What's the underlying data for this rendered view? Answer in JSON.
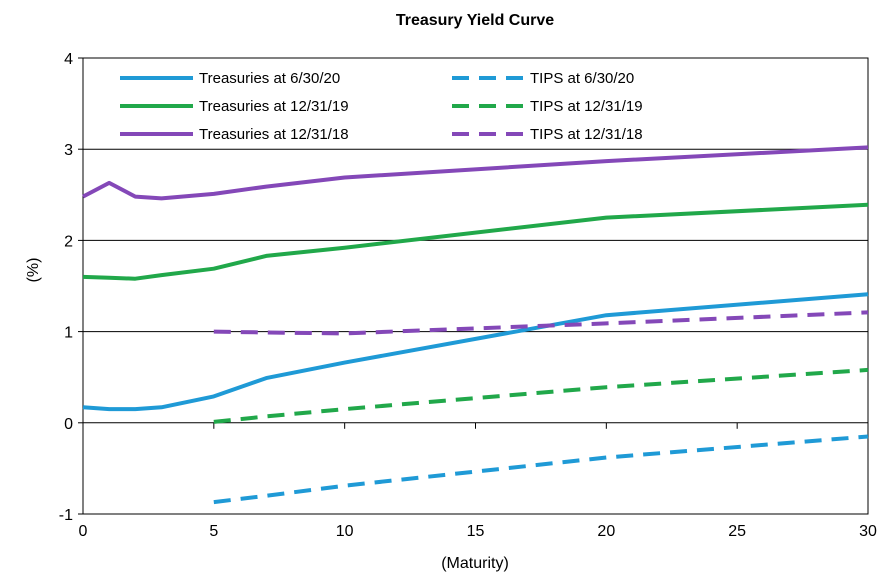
{
  "chart_data": {
    "type": "line",
    "title": "Treasury Yield Curve",
    "xlabel": "(Maturity)",
    "ylabel": "(%)",
    "xlim": [
      0,
      30
    ],
    "ylim": [
      -1,
      4
    ],
    "x_ticks": [
      "0",
      "5",
      "10",
      "15",
      "20",
      "25",
      "30"
    ],
    "y_ticks": [
      "-1",
      "0",
      "1",
      "2",
      "3",
      "4"
    ],
    "grid": "horizontal",
    "legend_position": "top-left inside",
    "series": [
      {
        "name": "Treasuries at 6/30/20",
        "color": "#1f9ad6",
        "dash": "solid",
        "points": [
          [
            0,
            0.17
          ],
          [
            1,
            0.15
          ],
          [
            2,
            0.15
          ],
          [
            3,
            0.17
          ],
          [
            5,
            0.29
          ],
          [
            7,
            0.49
          ],
          [
            10,
            0.66
          ],
          [
            20,
            1.18
          ],
          [
            30,
            1.41
          ]
        ]
      },
      {
        "name": "Treasuries at 12/31/19",
        "color": "#21a84a",
        "dash": "solid",
        "points": [
          [
            0,
            1.6
          ],
          [
            1,
            1.59
          ],
          [
            2,
            1.58
          ],
          [
            3,
            1.62
          ],
          [
            5,
            1.69
          ],
          [
            7,
            1.83
          ],
          [
            10,
            1.92
          ],
          [
            20,
            2.25
          ],
          [
            30,
            2.39
          ]
        ]
      },
      {
        "name": "Treasuries at 12/31/18",
        "color": "#8448b8",
        "dash": "solid",
        "points": [
          [
            0,
            2.48
          ],
          [
            1,
            2.63
          ],
          [
            2,
            2.48
          ],
          [
            3,
            2.46
          ],
          [
            5,
            2.51
          ],
          [
            7,
            2.59
          ],
          [
            10,
            2.69
          ],
          [
            20,
            2.87
          ],
          [
            30,
            3.02
          ]
        ]
      },
      {
        "name": "TIPS at 6/30/20",
        "color": "#1f9ad6",
        "dash": "dashed",
        "points": [
          [
            5,
            -0.87
          ],
          [
            7,
            -0.8
          ],
          [
            10,
            -0.69
          ],
          [
            20,
            -0.38
          ],
          [
            30,
            -0.15
          ]
        ]
      },
      {
        "name": "TIPS at 12/31/19",
        "color": "#21a84a",
        "dash": "dashed",
        "points": [
          [
            5,
            0.01
          ],
          [
            7,
            0.07
          ],
          [
            10,
            0.15
          ],
          [
            20,
            0.39
          ],
          [
            30,
            0.58
          ]
        ]
      },
      {
        "name": "TIPS at 12/31/18",
        "color": "#8448b8",
        "dash": "dashed",
        "points": [
          [
            5,
            1.0
          ],
          [
            7,
            0.99
          ],
          [
            10,
            0.98
          ],
          [
            20,
            1.09
          ],
          [
            30,
            1.21
          ]
        ]
      }
    ]
  }
}
